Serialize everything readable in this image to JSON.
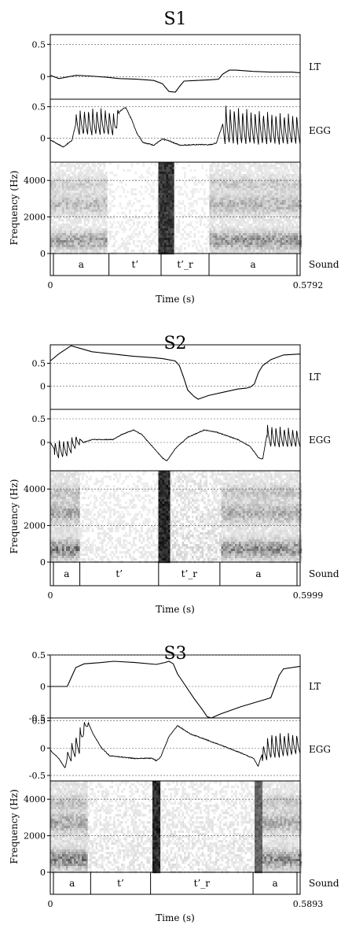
{
  "chart_data": [
    {
      "title": "S1",
      "type": "line",
      "time_label": "Time (s)",
      "time_range": [
        0,
        0.5792
      ],
      "time_tick_labels": [
        "0",
        "0.5792"
      ],
      "tiers": {
        "lt": {
          "label": "LT",
          "ylim": [
            -0.35,
            0.65
          ],
          "yticks": [
            0.5,
            0
          ],
          "ytick_labels": [
            "0.5",
            "0"
          ],
          "points": [
            [
              0,
              0.02
            ],
            [
              0.02,
              -0.03
            ],
            [
              0.06,
              0.02
            ],
            [
              0.09,
              0.01
            ],
            [
              0.13,
              -0.01
            ],
            [
              0.16,
              -0.03
            ],
            [
              0.2,
              -0.04
            ],
            [
              0.24,
              -0.06
            ],
            [
              0.26,
              -0.11
            ],
            [
              0.275,
              -0.23
            ],
            [
              0.29,
              -0.24
            ],
            [
              0.3,
              -0.15
            ],
            [
              0.31,
              -0.07
            ],
            [
              0.34,
              -0.06
            ],
            [
              0.37,
              -0.05
            ],
            [
              0.39,
              -0.04
            ],
            [
              0.4,
              0.04
            ],
            [
              0.415,
              0.1
            ],
            [
              0.43,
              0.1
            ],
            [
              0.47,
              0.08
            ],
            [
              0.51,
              0.07
            ],
            [
              0.56,
              0.07
            ],
            [
              0.5792,
              0.06
            ]
          ]
        },
        "egg": {
          "label": "EGG",
          "ylim": [
            -0.38,
            0.62
          ],
          "yticks": [
            0.5,
            0
          ],
          "ytick_labels": [
            "0.5",
            "0"
          ],
          "envelope": [
            [
              0,
              -0.15,
              0.1
            ],
            [
              0.03,
              -0.33,
              0.05
            ],
            [
              0.05,
              -0.12,
              0.05
            ],
            [
              0.06,
              0.05,
              0.45
            ],
            [
              0.1,
              0.05,
              0.5
            ],
            [
              0.13,
              0.05,
              0.5
            ],
            [
              0.15,
              0.05,
              0.4
            ],
            [
              0.16,
              0.3,
              0.55
            ],
            [
              0.175,
              0.38,
              0.6
            ],
            [
              0.19,
              0.25,
              0.3
            ],
            [
              0.2,
              0.08,
              0.1
            ],
            [
              0.215,
              -0.08,
              -0.05
            ],
            [
              0.24,
              -0.12,
              -0.1
            ],
            [
              0.26,
              -0.05,
              0.02
            ],
            [
              0.275,
              -0.06,
              -0.02
            ],
            [
              0.3,
              -0.12,
              -0.1
            ],
            [
              0.35,
              -0.11,
              -0.09
            ],
            [
              0.37,
              -0.13,
              -0.08
            ],
            [
              0.385,
              -0.15,
              0
            ],
            [
              0.4,
              -0.1,
              0.56
            ],
            [
              0.45,
              -0.1,
              0.5
            ],
            [
              0.5,
              -0.1,
              0.45
            ],
            [
              0.55,
              -0.1,
              0.42
            ],
            [
              0.5792,
              -0.1,
              0.42
            ]
          ],
          "voiced_regions": [
            [
              0.06,
              0.16
            ],
            [
              0.4,
              0.5792
            ]
          ]
        },
        "spectrogram": {
          "label": "Frequency (Hz)",
          "ylim": [
            0,
            5000
          ],
          "yticks": [
            0,
            2000,
            4000
          ],
          "ytick_labels": [
            "0",
            "2000",
            "4000"
          ],
          "regions": [
            [
              0,
              0.13,
              "voiced",
              0.45
            ],
            [
              0.13,
              0.25,
              "weak",
              0.1
            ],
            [
              0.25,
              0.285,
              "burst",
              0.9
            ],
            [
              0.285,
              0.37,
              "weak",
              0.1
            ],
            [
              0.37,
              0.5792,
              "voiced",
              0.5
            ]
          ]
        },
        "sound": {
          "label": "Sound",
          "intervals": [
            {
              "start": 0,
              "end": 0.132,
              "text": "a"
            },
            {
              "start": 0.132,
              "end": 0.256,
              "text": "t’"
            },
            {
              "start": 0.256,
              "end": 0.37,
              "text": "t’_r"
            },
            {
              "start": 0.37,
              "end": 0.5792,
              "text": "a"
            }
          ]
        }
      }
    },
    {
      "title": "S2",
      "type": "line",
      "time_label": "Time (s)",
      "time_range": [
        0,
        0.5999
      ],
      "time_tick_labels": [
        "0",
        "0.5999"
      ],
      "tiers": {
        "lt": {
          "label": "LT",
          "ylim": [
            -0.5,
            0.9
          ],
          "yticks": [
            0.5,
            0
          ],
          "ytick_labels": [
            "0.5",
            "0"
          ],
          "points": [
            [
              0,
              0.55
            ],
            [
              0.02,
              0.7
            ],
            [
              0.05,
              0.88
            ],
            [
              0.1,
              0.75
            ],
            [
              0.15,
              0.7
            ],
            [
              0.2,
              0.65
            ],
            [
              0.25,
              0.62
            ],
            [
              0.27,
              0.6
            ],
            [
              0.3,
              0.55
            ],
            [
              0.31,
              0.45
            ],
            [
              0.32,
              0.2
            ],
            [
              0.33,
              -0.08
            ],
            [
              0.345,
              -0.22
            ],
            [
              0.355,
              -0.28
            ],
            [
              0.38,
              -0.2
            ],
            [
              0.42,
              -0.12
            ],
            [
              0.45,
              -0.06
            ],
            [
              0.47,
              -0.04
            ],
            [
              0.48,
              -0.02
            ],
            [
              0.49,
              0.05
            ],
            [
              0.5,
              0.3
            ],
            [
              0.51,
              0.45
            ],
            [
              0.53,
              0.58
            ],
            [
              0.56,
              0.68
            ],
            [
              0.5999,
              0.7
            ]
          ]
        },
        "egg": {
          "label": "EGG",
          "ylim": [
            -0.6,
            0.7
          ],
          "yticks": [
            0.5,
            0
          ],
          "ytick_labels": [
            "0.5",
            "0"
          ],
          "envelope": [
            [
              0,
              -0.05,
              0.05
            ],
            [
              0.01,
              -0.35,
              0.05
            ],
            [
              0.04,
              -0.3,
              0.08
            ],
            [
              0.07,
              -0.05,
              0.2
            ],
            [
              0.08,
              -0.05,
              0.05
            ],
            [
              0.1,
              0.05,
              0.07
            ],
            [
              0.15,
              0.05,
              0.07
            ],
            [
              0.17,
              0.15,
              0.17
            ],
            [
              0.2,
              0.25,
              0.28
            ],
            [
              0.22,
              0.15,
              0.18
            ],
            [
              0.25,
              -0.15,
              -0.12
            ],
            [
              0.27,
              -0.35,
              -0.32
            ],
            [
              0.28,
              -0.4,
              -0.38
            ],
            [
              0.3,
              -0.15,
              -0.12
            ],
            [
              0.33,
              0.1,
              0.12
            ],
            [
              0.37,
              0.25,
              0.28
            ],
            [
              0.4,
              0.2,
              0.23
            ],
            [
              0.45,
              0.05,
              0.07
            ],
            [
              0.48,
              -0.1,
              -0.07
            ],
            [
              0.5,
              -0.35,
              -0.3
            ],
            [
              0.51,
              -0.4,
              -0.3
            ],
            [
              0.52,
              -0.1,
              0.4
            ],
            [
              0.56,
              -0.1,
              0.35
            ],
            [
              0.5999,
              -0.1,
              0.3
            ]
          ],
          "voiced_regions": [
            [
              0.01,
              0.07
            ],
            [
              0.52,
              0.5999
            ]
          ]
        },
        "spectrogram": {
          "label": "Frequency (Hz)",
          "ylim": [
            0,
            5000
          ],
          "yticks": [
            0,
            2000,
            4000
          ],
          "ytick_labels": [
            "0",
            "2000",
            "4000"
          ],
          "regions": [
            [
              0,
              0.07,
              "voiced",
              0.6
            ],
            [
              0.07,
              0.26,
              "weak",
              0.12
            ],
            [
              0.26,
              0.29,
              "burst",
              0.95
            ],
            [
              0.29,
              0.41,
              "weak",
              0.2
            ],
            [
              0.41,
              0.5999,
              "voiced",
              0.55
            ]
          ]
        },
        "sound": {
          "label": "Sound",
          "intervals": [
            {
              "start": 0,
              "end": 0.065,
              "text": "a"
            },
            {
              "start": 0.065,
              "end": 0.259,
              "text": "t’"
            },
            {
              "start": 0.259,
              "end": 0.41,
              "text": "t’_r"
            },
            {
              "start": 0.41,
              "end": 0.5999,
              "text": "a"
            }
          ]
        }
      }
    },
    {
      "title": "S3",
      "type": "line",
      "time_label": "Time (s)",
      "time_range": [
        0,
        0.5893
      ],
      "time_tick_labels": [
        "0",
        "0.5893"
      ],
      "tiers": {
        "lt": {
          "label": "LT",
          "ylim": [
            -0.5,
            0.5
          ],
          "yticks": [
            0.5,
            0,
            -0.5
          ],
          "ytick_labels": [
            "0.5",
            "0",
            "-0.5"
          ],
          "points": [
            [
              0,
              0
            ],
            [
              0.04,
              0
            ],
            [
              0.05,
              0.15
            ],
            [
              0.06,
              0.3
            ],
            [
              0.08,
              0.36
            ],
            [
              0.12,
              0.38
            ],
            [
              0.15,
              0.4
            ],
            [
              0.2,
              0.38
            ],
            [
              0.25,
              0.35
            ],
            [
              0.27,
              0.38
            ],
            [
              0.28,
              0.4
            ],
            [
              0.29,
              0.36
            ],
            [
              0.3,
              0.2
            ],
            [
              0.32,
              0
            ],
            [
              0.34,
              -0.2
            ],
            [
              0.36,
              -0.38
            ],
            [
              0.37,
              -0.48
            ],
            [
              0.38,
              -0.5
            ],
            [
              0.4,
              -0.44
            ],
            [
              0.45,
              -0.32
            ],
            [
              0.5,
              -0.22
            ],
            [
              0.51,
              -0.2
            ],
            [
              0.52,
              -0.18
            ],
            [
              0.53,
              0
            ],
            [
              0.54,
              0.18
            ],
            [
              0.55,
              0.28
            ],
            [
              0.5893,
              0.32
            ]
          ]
        },
        "egg": {
          "label": "EGG",
          "ylim": [
            -0.6,
            0.55
          ],
          "yticks": [
            0.5,
            0,
            -0.5
          ],
          "ytick_labels": [
            "0.5",
            "0",
            "-0.5"
          ],
          "envelope": [
            [
              0,
              -0.05,
              -0.03
            ],
            [
              0.02,
              -0.2,
              -0.18
            ],
            [
              0.035,
              -0.38,
              -0.35
            ],
            [
              0.04,
              -0.3,
              -0.05
            ],
            [
              0.07,
              -0.1,
              0.4
            ],
            [
              0.08,
              0.3,
              0.5
            ],
            [
              0.09,
              0.42,
              0.48
            ],
            [
              0.1,
              0.25,
              0.3
            ],
            [
              0.12,
              0,
              0.02
            ],
            [
              0.14,
              -0.15,
              -0.13
            ],
            [
              0.2,
              -0.2,
              -0.18
            ],
            [
              0.24,
              -0.2,
              -0.17
            ],
            [
              0.25,
              -0.26,
              -0.2
            ],
            [
              0.26,
              -0.18,
              -0.16
            ],
            [
              0.28,
              0.2,
              0.22
            ],
            [
              0.3,
              0.4,
              0.42
            ],
            [
              0.33,
              0.25,
              0.27
            ],
            [
              0.4,
              0.05,
              0.07
            ],
            [
              0.45,
              -0.1,
              -0.08
            ],
            [
              0.48,
              -0.2,
              -0.18
            ],
            [
              0.49,
              -0.35,
              -0.32
            ],
            [
              0.5,
              -0.25,
              0.05
            ],
            [
              0.52,
              -0.2,
              0.3
            ],
            [
              0.56,
              -0.15,
              0.3
            ],
            [
              0.5893,
              -0.1,
              0.28
            ]
          ],
          "voiced_regions": [
            [
              0.04,
              0.09
            ],
            [
              0.5,
              0.5893
            ]
          ]
        },
        "spectrogram": {
          "label": "Frequency (Hz)",
          "ylim": [
            0,
            5000
          ],
          "yticks": [
            0,
            2000,
            4000
          ],
          "ytick_labels": [
            "0",
            "2000",
            "4000"
          ],
          "regions": [
            [
              0,
              0.09,
              "voiced",
              0.6
            ],
            [
              0.09,
              0.24,
              "weak",
              0.15
            ],
            [
              0.24,
              0.26,
              "burst",
              0.95
            ],
            [
              0.26,
              0.48,
              "weak",
              0.15
            ],
            [
              0.48,
              0.5,
              "burst",
              0.7
            ],
            [
              0.5,
              0.5893,
              "voiced",
              0.55
            ]
          ]
        },
        "sound": {
          "label": "Sound",
          "intervals": [
            {
              "start": 0,
              "end": 0.09,
              "text": "a"
            },
            {
              "start": 0.09,
              "end": 0.235,
              "text": "t’"
            },
            {
              "start": 0.235,
              "end": 0.483,
              "text": "t’_r"
            },
            {
              "start": 0.483,
              "end": 0.5893,
              "text": "a"
            }
          ]
        }
      }
    }
  ]
}
